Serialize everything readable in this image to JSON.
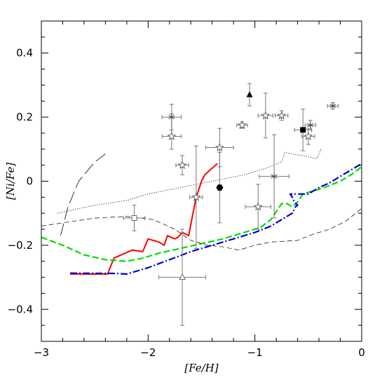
{
  "chart_data": {
    "type": "scatter",
    "xlabel": "[Fe/H]",
    "ylabel": "[Ni/Fe]",
    "xlim": [
      -3,
      0
    ],
    "ylim": [
      -0.5,
      0.5
    ],
    "x_ticks": [
      -3,
      -2,
      -1,
      0
    ],
    "x_tick_labels": [
      "−3",
      "−2",
      "−1",
      "0"
    ],
    "y_ticks": [
      -0.4,
      -0.2,
      0,
      0.2,
      0.4
    ],
    "y_tick_labels": [
      "−0.4",
      "−0.2",
      "0",
      "0.2",
      "0.4"
    ],
    "grid": false,
    "legend": "none",
    "lines": [
      {
        "style": "solid",
        "color": "#ff0000",
        "points": [
          [
            -2.73,
            -0.29
          ],
          [
            -2.38,
            -0.29
          ],
          [
            -2.32,
            -0.24
          ],
          [
            -2.15,
            -0.215
          ],
          [
            -2.05,
            -0.22
          ],
          [
            -2.0,
            -0.18
          ],
          [
            -1.9,
            -0.19
          ],
          [
            -1.85,
            -0.2
          ],
          [
            -1.82,
            -0.17
          ],
          [
            -1.75,
            -0.18
          ],
          [
            -1.72,
            -0.175
          ],
          [
            -1.68,
            -0.16
          ],
          [
            -1.62,
            -0.17
          ],
          [
            -1.58,
            -0.1
          ],
          [
            -1.55,
            -0.05
          ],
          [
            -1.5,
            0.0
          ],
          [
            -1.47,
            0.02
          ],
          [
            -1.42,
            0.035
          ],
          [
            -1.35,
            0.055
          ]
        ]
      },
      {
        "style": "dashed",
        "color": "#00dd00",
        "points": [
          [
            -3.0,
            -0.175
          ],
          [
            -2.8,
            -0.2
          ],
          [
            -2.6,
            -0.23
          ],
          [
            -2.4,
            -0.245
          ],
          [
            -2.2,
            -0.25
          ],
          [
            -2.05,
            -0.24
          ],
          [
            -1.9,
            -0.225
          ],
          [
            -1.7,
            -0.21
          ],
          [
            -1.5,
            -0.195
          ],
          [
            -1.3,
            -0.18
          ],
          [
            -1.1,
            -0.16
          ],
          [
            -0.95,
            -0.145
          ],
          [
            -0.85,
            -0.12
          ],
          [
            -0.8,
            -0.095
          ],
          [
            -0.75,
            -0.07
          ],
          [
            -0.7,
            -0.07
          ],
          [
            -0.65,
            -0.08
          ],
          [
            -0.6,
            -0.065
          ],
          [
            -0.55,
            -0.04
          ],
          [
            -0.45,
            -0.03
          ],
          [
            -0.35,
            -0.02
          ],
          [
            -0.2,
            0.0
          ],
          [
            -0.1,
            0.02
          ],
          [
            0.0,
            0.045
          ]
        ]
      },
      {
        "style": "dashdot",
        "color": "#0000cc",
        "points": [
          [
            -2.73,
            -0.287
          ],
          [
            -2.3,
            -0.288
          ],
          [
            -2.2,
            -0.29
          ],
          [
            -2.0,
            -0.27
          ],
          [
            -1.8,
            -0.245
          ],
          [
            -1.6,
            -0.22
          ],
          [
            -1.4,
            -0.2
          ],
          [
            -1.2,
            -0.18
          ],
          [
            -1.0,
            -0.16
          ],
          [
            -0.85,
            -0.14
          ],
          [
            -0.75,
            -0.12
          ],
          [
            -0.65,
            -0.1
          ],
          [
            -0.62,
            -0.08
          ],
          [
            -0.6,
            -0.075
          ],
          [
            -0.63,
            -0.065
          ],
          [
            -0.65,
            -0.05
          ],
          [
            -0.67,
            -0.04
          ],
          [
            -0.6,
            -0.04
          ],
          [
            -0.5,
            -0.04
          ],
          [
            -0.4,
            -0.02
          ],
          [
            -0.3,
            -0.005
          ],
          [
            -0.2,
            0.015
          ],
          [
            -0.1,
            0.035
          ],
          [
            0.0,
            0.055
          ]
        ]
      },
      {
        "style": "longdash",
        "color": "#000000",
        "points": [
          [
            -2.82,
            -0.17
          ],
          [
            -2.75,
            -0.08
          ],
          [
            -2.65,
            0.0
          ],
          [
            -2.5,
            0.06
          ],
          [
            -2.4,
            0.085
          ]
        ]
      },
      {
        "style": "dotted",
        "color": "#000000",
        "points": [
          [
            -2.85,
            -0.1
          ],
          [
            -2.5,
            -0.075
          ],
          [
            -2.2,
            -0.06
          ],
          [
            -2.0,
            -0.04
          ],
          [
            -1.7,
            -0.02
          ],
          [
            -1.4,
            0.0
          ],
          [
            -1.1,
            0.02
          ],
          [
            -0.9,
            0.04
          ],
          [
            -0.75,
            0.06
          ],
          [
            -0.72,
            0.09
          ],
          [
            -0.65,
            0.085
          ],
          [
            -0.55,
            0.08
          ],
          [
            -0.42,
            0.07
          ],
          [
            -0.38,
            0.1
          ]
        ]
      },
      {
        "style": "thindash",
        "color": "#000000",
        "points": [
          [
            -3.0,
            -0.14
          ],
          [
            -2.8,
            -0.13
          ],
          [
            -2.5,
            -0.115
          ],
          [
            -2.2,
            -0.11
          ],
          [
            -1.95,
            -0.12
          ],
          [
            -1.75,
            -0.15
          ],
          [
            -1.6,
            -0.185
          ],
          [
            -1.45,
            -0.2
          ],
          [
            -1.3,
            -0.205
          ],
          [
            -1.15,
            -0.215
          ],
          [
            -1.0,
            -0.2
          ],
          [
            -0.85,
            -0.19
          ],
          [
            -0.6,
            -0.185
          ],
          [
            -0.45,
            -0.165
          ],
          [
            -0.3,
            -0.15
          ],
          [
            -0.15,
            -0.125
          ],
          [
            0.0,
            -0.085
          ]
        ]
      }
    ],
    "points": [
      {
        "x": -1.78,
        "y": 0.2,
        "marker": "asterisk",
        "xerr": [
          0.09,
          0.09
        ],
        "yerr": [
          0.04,
          0.04
        ]
      },
      {
        "x": -1.78,
        "y": 0.14,
        "marker": "star",
        "xerr": [
          0.09,
          0.09
        ],
        "yerr": [
          0.04,
          0.07
        ]
      },
      {
        "x": -1.68,
        "y": 0.05,
        "marker": "star",
        "xerr": [
          0.06,
          0.06
        ],
        "yerr": [
          0.03,
          0.03
        ]
      },
      {
        "x": -1.55,
        "y": -0.05,
        "marker": "star",
        "xerr": [
          0.06,
          0.06
        ],
        "yerr": [
          0.16,
          0.16
        ]
      },
      {
        "x": -1.33,
        "y": 0.105,
        "marker": "star",
        "xerr": [
          0.13,
          0.13
        ],
        "yerr": [
          0.06,
          0.06
        ]
      },
      {
        "x": -1.33,
        "y": -0.02,
        "marker": "filled-hexagon",
        "xerr": [
          0,
          0
        ],
        "yerr": [
          0.11,
          0.11
        ]
      },
      {
        "x": -1.12,
        "y": 0.175,
        "marker": "star",
        "xerr": [
          0.05,
          0.05
        ],
        "yerr": [
          0.01,
          0.01
        ]
      },
      {
        "x": -1.05,
        "y": 0.27,
        "marker": "filled-triangle",
        "xerr": [
          0,
          0
        ],
        "yerr": [
          0.035,
          0.035
        ]
      },
      {
        "x": -0.97,
        "y": -0.08,
        "marker": "star",
        "xerr": [
          0.12,
          0.12
        ],
        "yerr": [
          0.07,
          0.07
        ]
      },
      {
        "x": -0.9,
        "y": 0.205,
        "marker": "star",
        "xerr": [
          0.07,
          0.07
        ],
        "yerr": [
          0.07,
          0.07
        ]
      },
      {
        "x": -0.82,
        "y": 0.015,
        "marker": "asterisk",
        "xerr": [
          0.14,
          0.14
        ],
        "yerr": [
          0.13,
          0.13
        ]
      },
      {
        "x": -0.75,
        "y": 0.205,
        "marker": "star",
        "xerr": [
          0.06,
          0.06
        ],
        "yerr": [
          0.015,
          0.015
        ]
      },
      {
        "x": -0.55,
        "y": 0.16,
        "marker": "filled-square",
        "xerr": [
          0.08,
          0.08
        ],
        "yerr": [
          0.065,
          0.065
        ]
      },
      {
        "x": -0.5,
        "y": 0.14,
        "marker": "star",
        "xerr": [
          0.06,
          0.06
        ],
        "yerr": [
          0.025,
          0.025
        ]
      },
      {
        "x": -0.48,
        "y": 0.175,
        "marker": "asterisk",
        "xerr": [
          0.05,
          0.05
        ],
        "yerr": [
          0.015,
          0.015
        ]
      },
      {
        "x": -0.27,
        "y": 0.235,
        "marker": "asterisk",
        "xerr": [
          0.05,
          0.05
        ],
        "yerr": [
          0.01,
          0.01
        ]
      },
      {
        "x": -2.13,
        "y": -0.115,
        "marker": "open-square",
        "xerr": [
          0.1,
          0.1
        ],
        "yerr": [
          0.04,
          0.04
        ]
      },
      {
        "x": -1.68,
        "y": -0.3,
        "marker": "open-triangle",
        "xerr": [
          0.22,
          0.22
        ],
        "yerr": [
          0.15,
          0.15
        ]
      }
    ]
  }
}
